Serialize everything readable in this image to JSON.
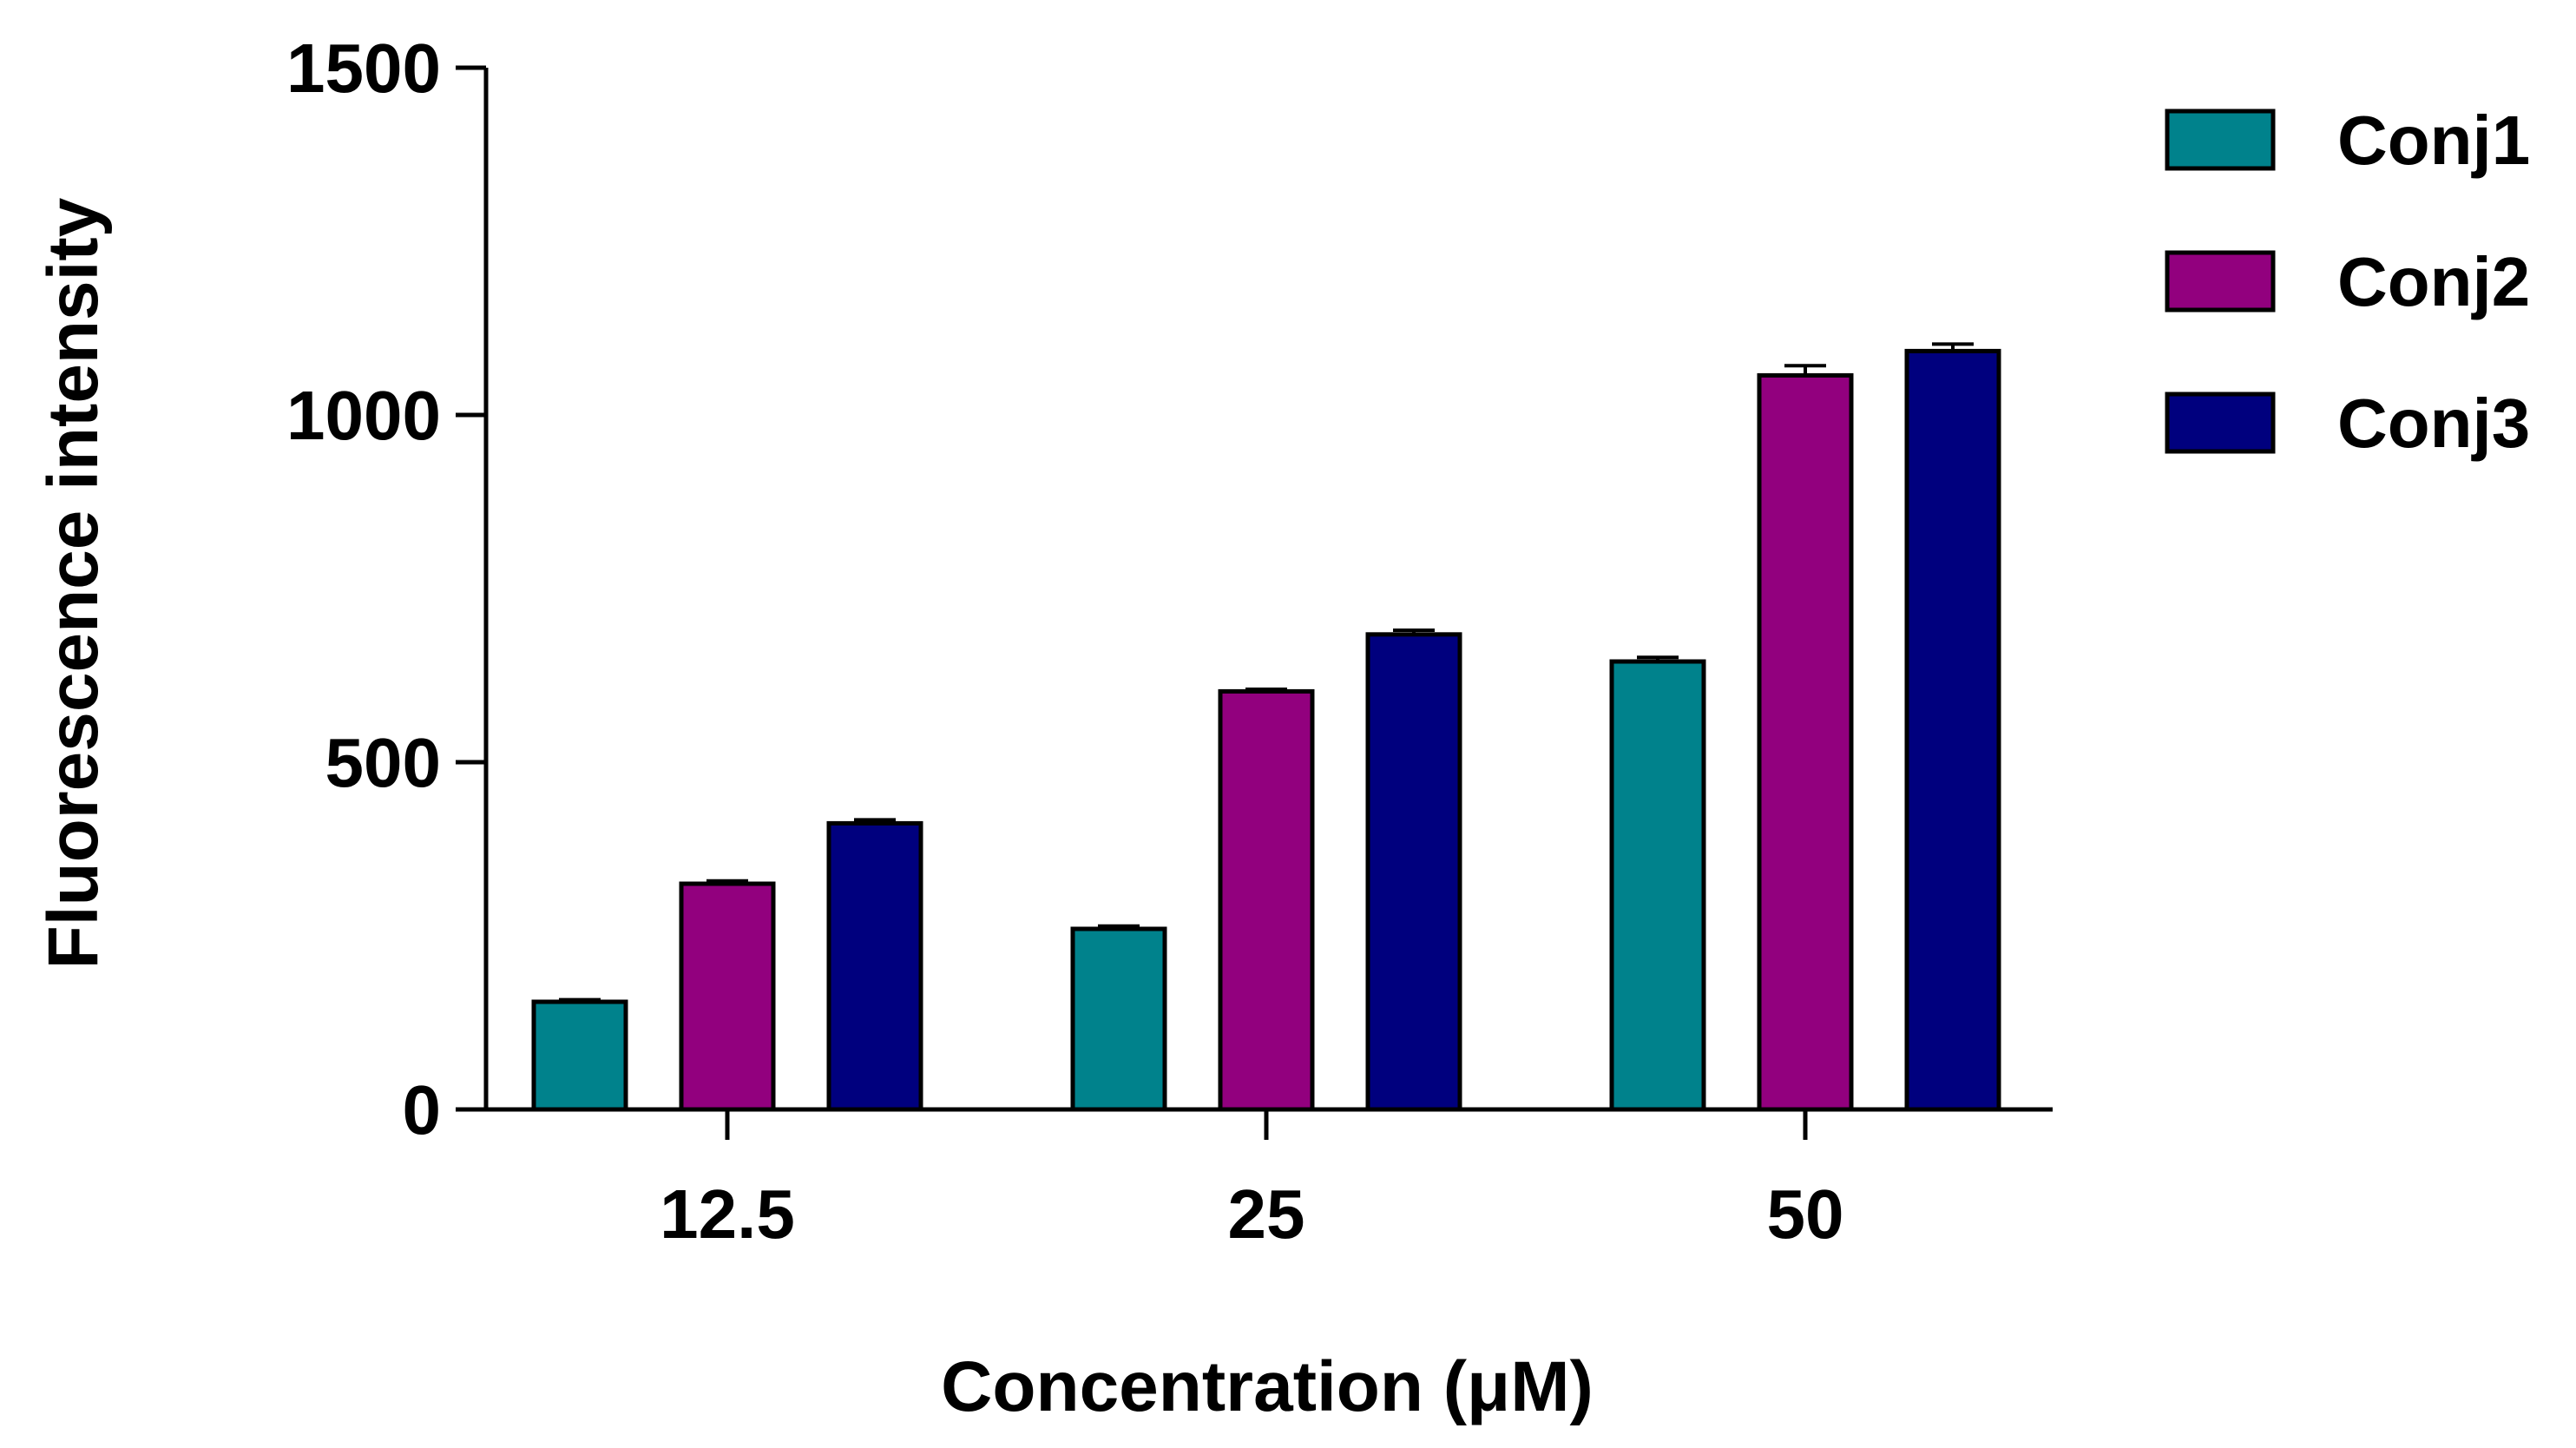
{
  "chart_data": {
    "type": "bar",
    "categories": [
      "12.5",
      "25",
      "50"
    ],
    "series": [
      {
        "name": "Conj1",
        "color": "#00828C",
        "values": [
          155,
          260,
          645
        ],
        "errors": [
          3,
          4,
          6
        ]
      },
      {
        "name": "Conj2",
        "color": "#92007E",
        "values": [
          325,
          602,
          1057
        ],
        "errors": [
          4,
          3,
          14
        ]
      },
      {
        "name": "Conj3",
        "color": "#00007E",
        "values": [
          412,
          684,
          1092
        ],
        "errors": [
          5,
          6,
          10
        ]
      }
    ],
    "xlabel": "Concentration (μM)",
    "ylabel": "Fluorescence intensity",
    "ylim": [
      0,
      1500
    ],
    "yticks": [
      0,
      500,
      1000,
      1500
    ],
    "grid": false,
    "legend_position": "top-right"
  }
}
